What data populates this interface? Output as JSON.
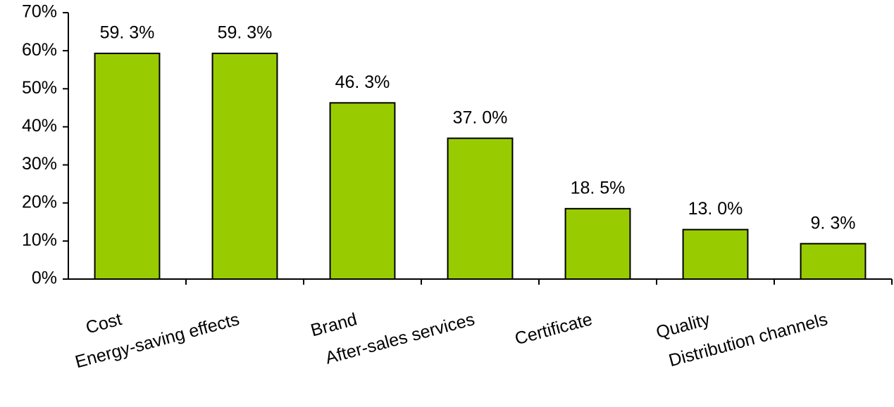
{
  "chart_data": {
    "type": "bar",
    "categories": [
      "Cost",
      "Energy-saving effects",
      "Brand",
      "After-sales services",
      "Certificate",
      "Quality",
      "Distribution channels"
    ],
    "values": [
      59.3,
      59.3,
      46.3,
      37.0,
      18.5,
      13.0,
      9.3
    ],
    "value_labels": [
      "59. 3%",
      "59. 3%",
      "46. 3%",
      "37. 0%",
      "18. 5%",
      "13. 0%",
      "9. 3%"
    ],
    "color": "#99cc00",
    "ylim": [
      0,
      70
    ],
    "yticks": [
      {
        "value": 0,
        "label": "0%"
      },
      {
        "value": 10,
        "label": "10%"
      },
      {
        "value": 20,
        "label": "20%"
      },
      {
        "value": 30,
        "label": "30%"
      },
      {
        "value": 40,
        "label": "40%"
      },
      {
        "value": 50,
        "label": "50%"
      },
      {
        "value": 60,
        "label": "60%"
      },
      {
        "value": 70,
        "label": "70%"
      }
    ],
    "grid": false
  }
}
